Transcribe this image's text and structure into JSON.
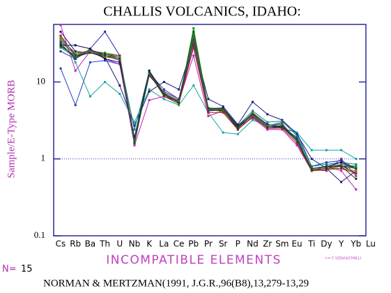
{
  "chart_data": {
    "type": "line",
    "title": "CHALLIS VOLCANICS, IDAHO:",
    "y_label": "Sample/E-Type MORB",
    "x_label": "INCOMPATIBLE ELEMENTS",
    "n_label": "N=",
    "n": 15,
    "file_note": "<= C:\\GData\\CHALLI",
    "reference": "NORMAN & MERTZMAN(1991, J.G.R.,96(B8),13,279-13,29",
    "categories": [
      "Cs",
      "Rb",
      "Ba",
      "Th",
      "U",
      "Nb",
      "K",
      "La",
      "Ce",
      "Pb",
      "Pr",
      "Sr",
      "P",
      "Nd",
      "Zr",
      "Sm",
      "Eu",
      "Ti",
      "Dy",
      "Y",
      "Yb",
      "Lu"
    ],
    "log_scale": true,
    "ylim": [
      0.1,
      56
    ],
    "yticks": [
      0.1,
      1,
      10
    ],
    "reference_line": 1,
    "series": [
      {
        "color": "#000000",
        "values": [
          30,
          21,
          26,
          22,
          21,
          1.6,
          13,
          7,
          5.5,
          38,
          4.4,
          4.2,
          2.5,
          3.8,
          2.6,
          2.7,
          1.8,
          0.75,
          0.78,
          0.82,
          0.65,
          null
        ]
      },
      {
        "color": "#1f3fbf",
        "values": [
          15,
          5,
          18,
          19,
          17,
          1.6,
          13,
          8,
          6,
          40,
          4.5,
          4.5,
          2.5,
          4,
          2.8,
          2.5,
          2.2,
          0.8,
          0.9,
          0.95,
          0.75,
          null
        ]
      },
      {
        "color": "#2a2aa8",
        "values": [
          25,
          20,
          27,
          45,
          22,
          1.8,
          14,
          6.5,
          5.5,
          30,
          4.2,
          4.3,
          2.4,
          3.6,
          2.5,
          2.6,
          1.9,
          0.72,
          0.75,
          0.8,
          0.8,
          null
        ]
      },
      {
        "color": "#14a3a3",
        "values": [
          40,
          18,
          6.5,
          10,
          7,
          3,
          8,
          6,
          5,
          9,
          4,
          2.2,
          2.1,
          3.2,
          2.7,
          3,
          2.2,
          1.3,
          1.3,
          1.3,
          1.0,
          null
        ]
      },
      {
        "color": "#c020c0",
        "values": [
          55,
          14,
          25,
          20,
          17,
          1.5,
          5.8,
          6.5,
          5.5,
          22,
          3.6,
          4.2,
          2.6,
          3.4,
          2.4,
          2.4,
          1.5,
          0.7,
          0.8,
          0.7,
          0.4,
          null
        ]
      },
      {
        "color": "#1a1a7a",
        "values": [
          45,
          25,
          24,
          21,
          9,
          2.7,
          7.5,
          10,
          8,
          32,
          6,
          4.8,
          2.8,
          5.5,
          3.8,
          3.2,
          2.1,
          1.0,
          0.75,
          0.5,
          0.7,
          null
        ]
      },
      {
        "color": "#10a010",
        "values": [
          35,
          22,
          25,
          24,
          22,
          1.7,
          13,
          7,
          5.3,
          50,
          4.5,
          4.4,
          2.6,
          3.9,
          2.7,
          2.8,
          1.8,
          0.75,
          0.8,
          0.85,
          0.8,
          null
        ]
      },
      {
        "color": "#108080",
        "values": [
          28,
          21,
          24,
          22,
          20,
          2.4,
          13.5,
          6.8,
          5.8,
          35,
          4.6,
          4.5,
          2.7,
          4.2,
          3,
          3.1,
          2.0,
          0.8,
          0.85,
          0.9,
          0.85,
          null
        ]
      },
      {
        "color": "#7a2a9a",
        "values": [
          33,
          23,
          25,
          22,
          19,
          1.8,
          12,
          7.5,
          6,
          36,
          4.3,
          4.4,
          2.5,
          4,
          2.7,
          2.9,
          1.7,
          0.72,
          0.7,
          1.0,
          0.6,
          null
        ]
      },
      {
        "color": "#808000",
        "values": [
          38,
          23,
          26,
          21,
          20,
          1.7,
          13,
          7,
          5.5,
          34,
          4.4,
          4.1,
          2.6,
          3.7,
          2.6,
          2.7,
          1.7,
          0.7,
          0.75,
          0.75,
          0.7,
          null
        ]
      },
      {
        "color": "#0a0a60",
        "values": [
          30,
          30,
          27,
          20,
          18,
          1.9,
          14,
          7.2,
          5.7,
          40,
          4.5,
          4.6,
          2.7,
          3.9,
          2.8,
          2.6,
          1.8,
          0.75,
          0.8,
          0.9,
          0.75,
          null
        ]
      },
      {
        "color": "#b02020",
        "values": [
          40,
          22,
          25,
          23,
          22,
          1.6,
          13,
          6.5,
          5.2,
          28,
          4,
          4,
          2.4,
          3.5,
          2.5,
          2.5,
          1.6,
          0.7,
          0.72,
          0.75,
          0.65,
          null
        ]
      },
      {
        "color": "#303030",
        "values": [
          32,
          20,
          26,
          23,
          21,
          1.6,
          12.5,
          6.8,
          5.4,
          36,
          4.3,
          4.3,
          2.5,
          3.8,
          2.6,
          2.6,
          1.7,
          0.72,
          0.75,
          0.8,
          0.55,
          null
        ]
      },
      {
        "color": "#707070",
        "values": [
          36,
          24,
          25,
          22,
          21,
          1.7,
          13,
          7.3,
          5.6,
          40,
          4.4,
          4.4,
          2.6,
          4,
          2.7,
          2.8,
          1.75,
          0.75,
          0.8,
          0.85,
          0.75,
          null
        ]
      },
      {
        "color": "#0a5a0a",
        "values": [
          29,
          22,
          24,
          22,
          20,
          1.6,
          13.5,
          7,
          5.4,
          45,
          4.5,
          4.5,
          2.6,
          3.8,
          2.6,
          2.7,
          1.8,
          0.74,
          0.8,
          0.8,
          0.75,
          null
        ]
      }
    ]
  }
}
